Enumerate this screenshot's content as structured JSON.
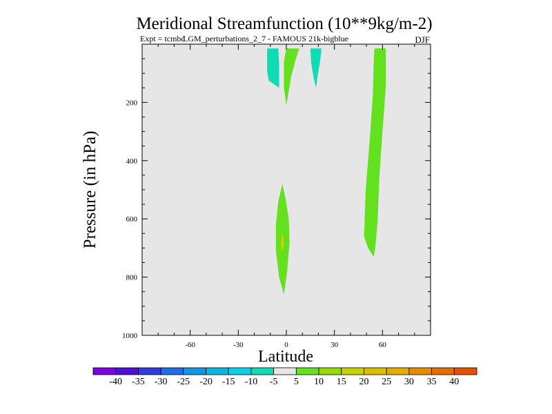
{
  "chart_data": {
    "type": "contour",
    "title": "Meridional Streamfunction (10**9kg/m-2)",
    "subtitle_left_a": "Expt = tcmbd",
    "subtitle_left_b": "LGM_perturbations_2_7 - FAMOUS 21k-bigblue",
    "subtitle_right": "DJF",
    "xlabel": "Latitude",
    "ylabel": "Pressure (in hPa)",
    "xlim": [
      -90,
      90
    ],
    "ylim": [
      1000,
      0
    ],
    "x_ticks": [
      -60,
      -30,
      0,
      30,
      60
    ],
    "x_tick_labels": [
      "-60",
      "-30",
      "0",
      "30",
      "60"
    ],
    "y_ticks": [
      200,
      400,
      600,
      800,
      1000
    ],
    "y_tick_labels": [
      "200",
      "400",
      "600",
      "800",
      "1000"
    ],
    "background_color": "#e6e6e6",
    "regions": [
      {
        "name": "cell-neg-10S",
        "level": -10,
        "color": "#0fdcb4",
        "polygon": [
          [
            -12,
            15
          ],
          [
            -5,
            15
          ],
          [
            -4.5,
            70
          ],
          [
            -4.5,
            150
          ],
          [
            -7,
            140
          ],
          [
            -11,
            125
          ],
          [
            -12,
            95
          ]
        ]
      },
      {
        "name": "cell-pos-eq-upper",
        "level": 5,
        "color": "#64e11e",
        "polygon": [
          [
            0,
            15
          ],
          [
            8,
            15
          ],
          [
            6,
            50
          ],
          [
            3,
            110
          ],
          [
            0,
            210
          ],
          [
            -1.5,
            150
          ],
          [
            -1.5,
            60
          ]
        ]
      },
      {
        "name": "cell-neg-18N",
        "level": -10,
        "color": "#0fdcb4",
        "polygon": [
          [
            15,
            15
          ],
          [
            22,
            15
          ],
          [
            21,
            60
          ],
          [
            19.5,
            110
          ],
          [
            18.5,
            150
          ],
          [
            17,
            115
          ],
          [
            15.5,
            65
          ]
        ]
      },
      {
        "name": "cell-pos-55N",
        "level": 5,
        "color": "#64e11e",
        "polygon": [
          [
            55,
            15
          ],
          [
            62,
            15
          ],
          [
            62,
            150
          ],
          [
            60,
            300
          ],
          [
            58,
            460
          ],
          [
            57,
            600
          ],
          [
            55.5,
            700
          ],
          [
            54.5,
            730
          ],
          [
            51,
            700
          ],
          [
            48.5,
            660
          ],
          [
            49.5,
            500
          ],
          [
            52,
            330
          ],
          [
            54,
            170
          ],
          [
            54.5,
            60
          ]
        ]
      },
      {
        "name": "cell-pos-eq-lower",
        "level": 5,
        "color": "#64e11e",
        "polygon": [
          [
            -2.5,
            480
          ],
          [
            -0.5,
            530
          ],
          [
            1.5,
            600
          ],
          [
            2,
            680
          ],
          [
            0.5,
            780
          ],
          [
            -1.5,
            860
          ],
          [
            -4.5,
            800
          ],
          [
            -6.5,
            710
          ],
          [
            -6.5,
            620
          ],
          [
            -5,
            540
          ]
        ]
      },
      {
        "name": "cell-pos-eq-core",
        "level": 15,
        "color": "#c8d200",
        "polygon": [
          [
            -2.8,
            650
          ],
          [
            -1.6,
            665
          ],
          [
            -1.6,
            695
          ],
          [
            -2.8,
            715
          ],
          [
            -3.4,
            685
          ]
        ]
      }
    ],
    "colorbar": {
      "colors": [
        "#7d00e6",
        "#4b0fd7",
        "#2d3ce1",
        "#1e6ee6",
        "#1496e6",
        "#0ab4e6",
        "#0ad2e6",
        "#0fdcb4",
        "#e6e6e6",
        "#64e11e",
        "#96dc00",
        "#c8d200",
        "#dcbe00",
        "#e6aa00",
        "#e68c00",
        "#e66e00",
        "#e65000"
      ],
      "labels": [
        "-40",
        "-35",
        "-30",
        "-25",
        "-20",
        "-15",
        "-10",
        "-5",
        "5",
        "10",
        "15",
        "20",
        "25",
        "30",
        "35",
        "40"
      ]
    }
  }
}
